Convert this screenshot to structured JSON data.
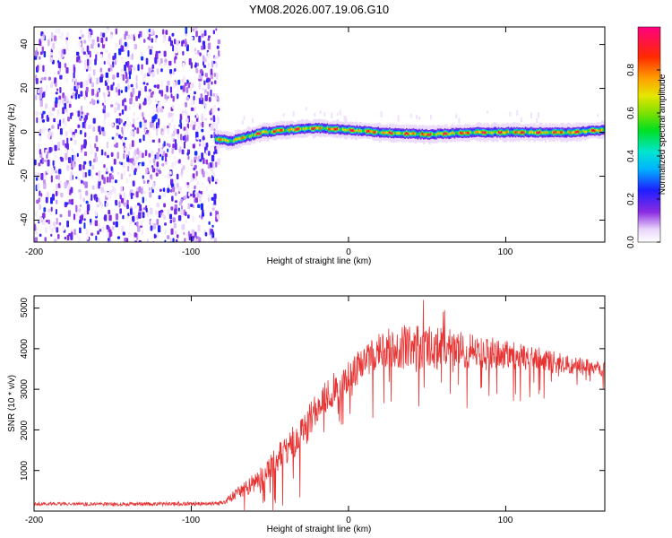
{
  "figure": {
    "title": "YM08.2026.007.19.06.G10"
  },
  "chart_data": [
    {
      "type": "heatmap",
      "xlabel": "Height of straight line (km)",
      "ylabel": "Frequency (Hz)",
      "xlim": [
        -200,
        163
      ],
      "ylim": [
        -50,
        48
      ],
      "xticks": [
        -200,
        -100,
        0,
        100
      ],
      "xtick_labels": [
        "-200",
        "-100",
        "0",
        "100"
      ],
      "yticks": [
        -40,
        -20,
        0,
        20,
        40
      ],
      "ytick_labels": [
        "-40",
        "-20",
        "0",
        "20",
        "40"
      ],
      "noise_region_x": [
        -200,
        -83
      ],
      "ridge": {
        "x_start": -85,
        "x_end": 163,
        "frequency_track": [
          [
            -85,
            -3
          ],
          [
            -75,
            -4
          ],
          [
            -65,
            -2
          ],
          [
            -55,
            0
          ],
          [
            -40,
            1
          ],
          [
            -20,
            2
          ],
          [
            0,
            1
          ],
          [
            20,
            0
          ],
          [
            50,
            -1
          ],
          [
            80,
            0
          ],
          [
            110,
            0
          ],
          [
            140,
            0
          ],
          [
            163,
            1
          ]
        ]
      },
      "colorbar": {
        "label": "Normalized spectral amplitude",
        "range": [
          0,
          1
        ],
        "ticks": [
          0.0,
          0.2,
          0.4,
          0.6,
          0.8
        ],
        "tick_labels": [
          "0.0",
          "0.2",
          "0.4",
          "0.6",
          "0.8"
        ]
      }
    },
    {
      "type": "line",
      "xlabel": "Height of straight line (km)",
      "ylabel": "SNR (10 * v/v)",
      "xlim": [
        -200,
        163
      ],
      "ylim": [
        0,
        5300
      ],
      "xticks": [
        -200,
        -100,
        0,
        100
      ],
      "xtick_labels": [
        "-200",
        "-100",
        "0",
        "100"
      ],
      "yticks": [
        1000,
        2000,
        3000,
        4000,
        5000
      ],
      "ytick_labels": [
        "1000",
        "2000",
        "3000",
        "4000",
        "5000"
      ],
      "series": [
        {
          "name": "SNR",
          "color": "#e83333",
          "trend": [
            [
              -200,
              180
            ],
            [
              -150,
              170
            ],
            [
              -100,
              180
            ],
            [
              -80,
              200
            ],
            [
              -72,
              400
            ],
            [
              -60,
              700
            ],
            [
              -50,
              1100
            ],
            [
              -40,
              1500
            ],
            [
              -30,
              1900
            ],
            [
              -20,
              2500
            ],
            [
              -10,
              3000
            ],
            [
              0,
              3300
            ],
            [
              10,
              3700
            ],
            [
              20,
              4000
            ],
            [
              40,
              4050
            ],
            [
              60,
              4000
            ],
            [
              80,
              3950
            ],
            [
              100,
              3850
            ],
            [
              120,
              3750
            ],
            [
              140,
              3600
            ],
            [
              163,
              3500
            ]
          ],
          "spread": [
            [
              -200,
              40
            ],
            [
              -80,
              50
            ],
            [
              -72,
              150
            ],
            [
              -50,
              300
            ],
            [
              -30,
              450
            ],
            [
              0,
              400
            ],
            [
              20,
              450
            ],
            [
              40,
              600
            ],
            [
              60,
              500
            ],
            [
              100,
              350
            ],
            [
              163,
              180
            ]
          ]
        }
      ]
    }
  ]
}
